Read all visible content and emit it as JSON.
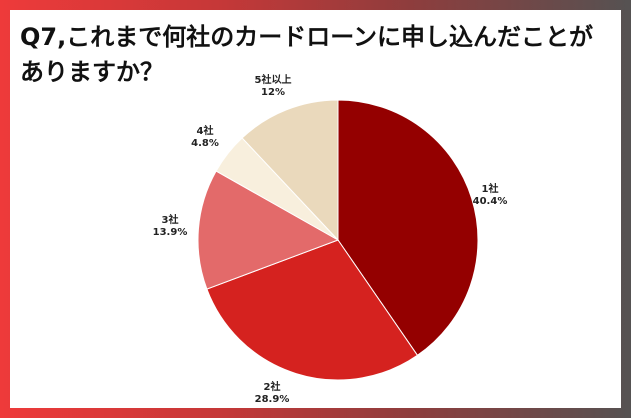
{
  "title": "Q7,これまで何社のカードローンに申し込んだことがありますか？",
  "chart_data": {
    "type": "pie",
    "title": "Q7,これまで何社のカードローンに申し込んだことがありますか？",
    "slices": [
      {
        "label": "1社",
        "value": 40.4,
        "display": "40.4%",
        "color": "#940000"
      },
      {
        "label": "2社",
        "value": 28.9,
        "display": "28.9%",
        "color": "#d5221f"
      },
      {
        "label": "3社",
        "value": 13.9,
        "display": "13.9%",
        "color": "#e36a6a"
      },
      {
        "label": "4社",
        "value": 4.8,
        "display": "4.8%",
        "color": "#f8efdd"
      },
      {
        "label": "5社以上",
        "value": 12,
        "display": "12%",
        "color": "#ead9bc"
      }
    ],
    "start": "12 o'clock",
    "direction": "clockwise",
    "legend": "none"
  }
}
